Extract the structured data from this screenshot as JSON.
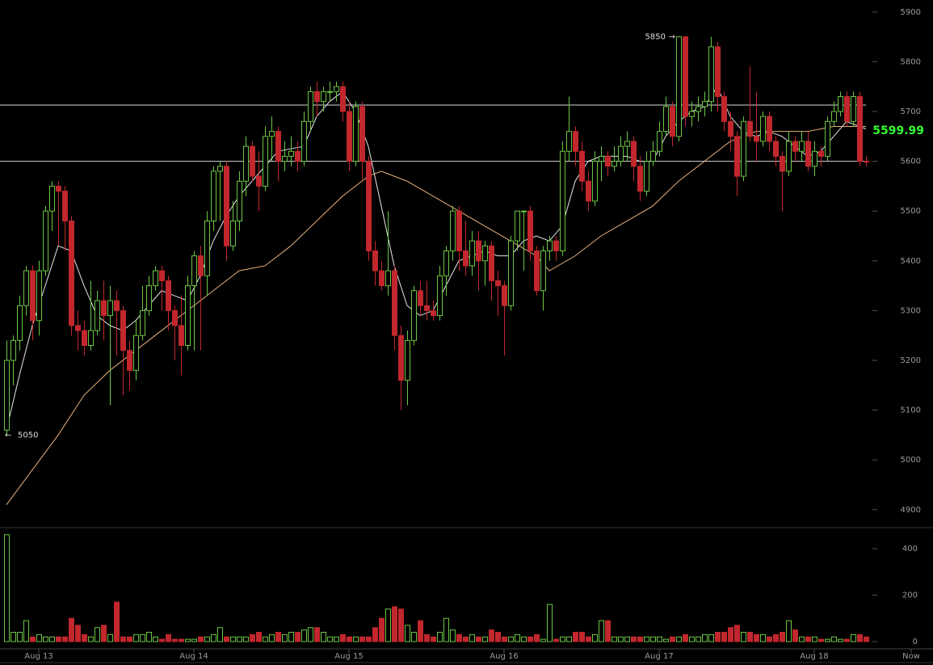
{
  "chart_data": {
    "type": "candlestick",
    "open": [
      5060,
      5200,
      5240,
      5310,
      5380,
      5280,
      5380,
      5500,
      5550,
      5540,
      5480,
      5270,
      5260,
      5230,
      5260,
      5320,
      5290,
      5320,
      5300,
      5220,
      5180,
      5250,
      5300,
      5350,
      5380,
      5360,
      5300,
      5270,
      5230,
      5350,
      5410,
      5370,
      5480,
      5580,
      5590,
      5430,
      5480,
      5560,
      5630,
      5570,
      5550,
      5650,
      5660,
      5600,
      5610,
      5620,
      5600,
      5680,
      5740,
      5720,
      5740,
      5740,
      5750,
      5700,
      5600,
      5710,
      5600,
      5420,
      5380,
      5350,
      5380,
      5250,
      5160,
      5240,
      5340,
      5310,
      5300,
      5290,
      5370,
      5420,
      5500,
      5420,
      5390,
      5440,
      5400,
      5430,
      5360,
      5350,
      5310,
      5440,
      5500,
      5500,
      5420,
      5340,
      5420,
      5440,
      5420,
      5620,
      5660,
      5620,
      5560,
      5520,
      5600,
      5610,
      5590,
      5600,
      5630,
      5640,
      5590,
      5540,
      5600,
      5620,
      5660,
      5710,
      5650,
      5850,
      5690,
      5700,
      5710,
      5720,
      5830,
      5730,
      5680,
      5650,
      5570,
      5680,
      5650,
      5640,
      5690,
      5640,
      5610,
      5580,
      5640,
      5620,
      5640,
      5590,
      5620,
      5610,
      5680,
      5700,
      5730,
      5680,
      5730,
      5600
    ],
    "high": [
      5240,
      5250,
      5330,
      5390,
      5390,
      5400,
      5510,
      5560,
      5560,
      5550,
      5490,
      5300,
      5280,
      5360,
      5340,
      5360,
      5350,
      5340,
      5310,
      5240,
      5280,
      5350,
      5370,
      5390,
      5390,
      5370,
      5310,
      5330,
      5370,
      5420,
      5430,
      5500,
      5590,
      5600,
      5600,
      5520,
      5580,
      5650,
      5640,
      5620,
      5670,
      5690,
      5670,
      5640,
      5650,
      5640,
      5700,
      5750,
      5760,
      5750,
      5760,
      5760,
      5760,
      5720,
      5720,
      5720,
      5610,
      5440,
      5400,
      5500,
      5390,
      5270,
      5260,
      5350,
      5360,
      5360,
      5320,
      5390,
      5430,
      5510,
      5510,
      5480,
      5460,
      5460,
      5440,
      5440,
      5380,
      5360,
      5450,
      5500,
      5500,
      5510,
      5430,
      5430,
      5450,
      5450,
      5640,
      5730,
      5670,
      5640,
      5580,
      5620,
      5630,
      5620,
      5630,
      5650,
      5660,
      5650,
      5610,
      5620,
      5640,
      5680,
      5730,
      5720,
      5850,
      5850,
      5720,
      5730,
      5740,
      5850,
      5840,
      5740,
      5700,
      5660,
      5690,
      5790,
      5740,
      5700,
      5700,
      5650,
      5620,
      5660,
      5650,
      5660,
      5660,
      5640,
      5630,
      5690,
      5720,
      5740,
      5740,
      5740,
      5740,
      5610
    ],
    "low": [
      5050,
      5150,
      5220,
      5290,
      5240,
      5250,
      5370,
      5460,
      5430,
      5420,
      5250,
      5220,
      5210,
      5220,
      5250,
      5240,
      5110,
      5210,
      5130,
      5140,
      5160,
      5240,
      5290,
      5340,
      5300,
      5260,
      5200,
      5170,
      5220,
      5220,
      5220,
      5330,
      5460,
      5480,
      5400,
      5420,
      5460,
      5530,
      5560,
      5500,
      5540,
      5600,
      5560,
      5580,
      5590,
      5580,
      5590,
      5660,
      5690,
      5700,
      5720,
      5720,
      5680,
      5580,
      5590,
      5560,
      5400,
      5350,
      5340,
      5330,
      5220,
      5100,
      5110,
      5230,
      5290,
      5280,
      5280,
      5280,
      5330,
      5400,
      5380,
      5370,
      5370,
      5340,
      5350,
      5320,
      5290,
      5210,
      5300,
      5420,
      5380,
      5400,
      5330,
      5300,
      5400,
      5400,
      5410,
      5600,
      5590,
      5540,
      5500,
      5510,
      5560,
      5570,
      5580,
      5590,
      5600,
      5560,
      5520,
      5530,
      5590,
      5610,
      5650,
      5630,
      5640,
      5670,
      5670,
      5680,
      5690,
      5700,
      5700,
      5660,
      5620,
      5530,
      5560,
      5640,
      5600,
      5630,
      5620,
      5590,
      5500,
      5570,
      5600,
      5600,
      5580,
      5570,
      5590,
      5600,
      5670,
      5690,
      5670,
      5670,
      5590,
      5590
    ],
    "close": [
      5200,
      5240,
      5310,
      5380,
      5280,
      5380,
      5500,
      5550,
      5540,
      5480,
      5270,
      5260,
      5230,
      5260,
      5320,
      5290,
      5320,
      5300,
      5220,
      5180,
      5250,
      5300,
      5350,
      5380,
      5360,
      5300,
      5270,
      5230,
      5350,
      5410,
      5370,
      5480,
      5580,
      5590,
      5430,
      5480,
      5560,
      5630,
      5570,
      5550,
      5650,
      5660,
      5600,
      5610,
      5620,
      5600,
      5680,
      5740,
      5720,
      5740,
      5740,
      5750,
      5700,
      5600,
      5710,
      5600,
      5420,
      5380,
      5350,
      5380,
      5250,
      5160,
      5240,
      5340,
      5310,
      5300,
      5290,
      5370,
      5420,
      5500,
      5420,
      5390,
      5440,
      5400,
      5430,
      5360,
      5350,
      5310,
      5440,
      5500,
      5500,
      5420,
      5340,
      5420,
      5440,
      5420,
      5620,
      5660,
      5620,
      5560,
      5520,
      5600,
      5610,
      5590,
      5600,
      5630,
      5640,
      5590,
      5540,
      5600,
      5620,
      5660,
      5710,
      5650,
      5850,
      5690,
      5700,
      5710,
      5720,
      5830,
      5730,
      5680,
      5650,
      5570,
      5680,
      5650,
      5640,
      5690,
      5640,
      5610,
      5580,
      5640,
      5620,
      5640,
      5590,
      5620,
      5610,
      5680,
      5700,
      5730,
      5680,
      5730,
      5600,
      5599.99
    ],
    "volume": [
      460,
      40,
      40,
      90,
      20,
      30,
      20,
      20,
      20,
      20,
      100,
      70,
      30,
      20,
      60,
      70,
      30,
      170,
      20,
      20,
      30,
      30,
      40,
      20,
      10,
      30,
      10,
      10,
      10,
      10,
      20,
      20,
      30,
      60,
      20,
      20,
      20,
      20,
      30,
      40,
      20,
      30,
      40,
      30,
      40,
      40,
      50,
      60,
      60,
      40,
      20,
      20,
      30,
      20,
      20,
      20,
      20,
      60,
      100,
      140,
      150,
      140,
      70,
      40,
      90,
      30,
      20,
      40,
      100,
      50,
      30,
      20,
      30,
      20,
      20,
      50,
      40,
      20,
      20,
      30,
      20,
      20,
      30,
      10,
      160,
      10,
      20,
      20,
      40,
      40,
      20,
      30,
      90,
      90,
      20,
      20,
      20,
      20,
      20,
      20,
      20,
      20,
      10,
      20,
      20,
      30,
      20,
      20,
      30,
      30,
      40,
      40,
      60,
      70,
      40,
      40,
      30,
      30,
      20,
      30,
      40,
      90,
      50,
      20,
      20,
      20,
      10,
      10,
      20,
      10,
      10,
      30,
      30,
      20
    ],
    "up_color": "#6cc644",
    "down_color": "#c1272d",
    "lines": [
      {
        "color": "#e8e8e8",
        "x": [
          0,
          2,
          4,
          6,
          8,
          10,
          12,
          14,
          16,
          18,
          20,
          22,
          24,
          26,
          28,
          30,
          32,
          34,
          36,
          38,
          40,
          42,
          44,
          46,
          48,
          50,
          52,
          54,
          56,
          58,
          60,
          62,
          64,
          66,
          68,
          70,
          72,
          74,
          76,
          78,
          80,
          82,
          84,
          86,
          88,
          90,
          92,
          94,
          96,
          98,
          100,
          102,
          104,
          106,
          108,
          110,
          112,
          114,
          116,
          118,
          120,
          122,
          124,
          126,
          128,
          130,
          132,
          133
        ],
        "values": [
          5060,
          5170,
          5270,
          5350,
          5430,
          5420,
          5350,
          5290,
          5270,
          5260,
          5280,
          5310,
          5340,
          5330,
          5320,
          5370,
          5440,
          5490,
          5530,
          5560,
          5590,
          5620,
          5625,
          5630,
          5690,
          5720,
          5740,
          5700,
          5630,
          5510,
          5390,
          5310,
          5290,
          5300,
          5350,
          5400,
          5410,
          5420,
          5410,
          5410,
          5440,
          5450,
          5440,
          5470,
          5560,
          5600,
          5610,
          5610,
          5610,
          5600,
          5600,
          5650,
          5680,
          5700,
          5710,
          5750,
          5690,
          5660,
          5650,
          5660,
          5650,
          5630,
          5610,
          5620,
          5650,
          5680,
          5670,
          5665
        ]
      },
      {
        "color": "#e8b07a",
        "x": [
          0,
          4,
          8,
          12,
          16,
          20,
          24,
          28,
          32,
          36,
          40,
          44,
          48,
          52,
          56,
          58,
          62,
          66,
          70,
          74,
          78,
          82,
          84,
          88,
          92,
          96,
          100,
          104,
          108,
          112,
          116,
          120,
          124,
          128,
          133
        ],
        "values": [
          4910,
          4980,
          5050,
          5130,
          5180,
          5220,
          5260,
          5300,
          5340,
          5380,
          5390,
          5430,
          5480,
          5530,
          5570,
          5580,
          5560,
          5530,
          5500,
          5470,
          5440,
          5410,
          5380,
          5410,
          5450,
          5480,
          5510,
          5560,
          5600,
          5640,
          5660,
          5660,
          5660,
          5670,
          5670
        ]
      }
    ],
    "hlines": [
      5713,
      5600
    ],
    "xlim": [
      -1,
      141
    ],
    "ylim": [
      4864,
      5924
    ],
    "vol_ylim": [
      0,
      480
    ],
    "yticks": [
      4900,
      5000,
      5100,
      5200,
      5300,
      5400,
      5500,
      5600,
      5700,
      5800,
      5900
    ],
    "vol_yticks": [
      0,
      200,
      400
    ],
    "xticks": [
      {
        "value": 5,
        "label": "Aug 13"
      },
      {
        "value": 29,
        "label": "Aug 14"
      },
      {
        "value": 53,
        "label": "Aug 15"
      },
      {
        "value": 77,
        "label": "Aug 16"
      },
      {
        "value": 101,
        "label": "Aug 17"
      },
      {
        "value": 125,
        "label": "Aug 18"
      },
      {
        "value": 140,
        "label": "Now"
      }
    ],
    "annotations": [
      {
        "index": 104,
        "text": "5850",
        "arrow": "→"
      },
      {
        "index": 0,
        "text": "5050",
        "arrow": "←"
      }
    ],
    "last_price_color": "#33ff33"
  }
}
